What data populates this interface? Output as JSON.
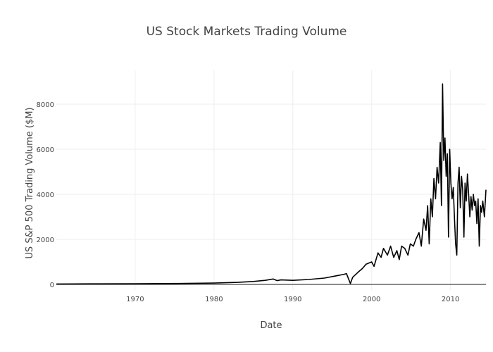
{
  "chart_data": {
    "type": "line",
    "title": "US Stock Markets Trading Volume",
    "xlabel": "Date",
    "ylabel": "US S&P 500 Trading Volume ($M)",
    "xlim": [
      1960.0,
      2014.5
    ],
    "ylim": [
      -250,
      9500
    ],
    "x_ticks": [
      1970,
      1980,
      1990,
      2000,
      2010
    ],
    "y_ticks": [
      0,
      2000,
      4000,
      6000,
      8000
    ],
    "grid": true,
    "legend": "none",
    "series": [
      {
        "name": "US S&P 500 Trading Volume ($M)",
        "color": "#000000",
        "x": [
          1960.0,
          1965.0,
          1970.0,
          1975.0,
          1980.0,
          1983.0,
          1985.0,
          1986.5,
          1987.5,
          1988.0,
          1988.5,
          1990.0,
          1992.0,
          1994.0,
          1995.5,
          1996.5,
          1996.8,
          1997.3,
          1997.6,
          1998.3,
          1998.8,
          1999.3,
          2000.0,
          2000.3,
          2000.8,
          2001.2,
          2001.5,
          2002.0,
          2002.4,
          2002.8,
          2003.2,
          2003.5,
          2003.8,
          2004.2,
          2004.6,
          2004.9,
          2005.3,
          2005.6,
          2006.0,
          2006.3,
          2006.6,
          2006.9,
          2007.1,
          2007.3,
          2007.5,
          2007.7,
          2007.9,
          2008.1,
          2008.3,
          2008.5,
          2008.7,
          2008.85,
          2009.0,
          2009.15,
          2009.3,
          2009.45,
          2009.6,
          2009.75,
          2009.9,
          2010.05,
          2010.2,
          2010.35,
          2010.5,
          2010.65,
          2010.8,
          2010.95,
          2011.1,
          2011.25,
          2011.4,
          2011.55,
          2011.7,
          2011.85,
          2012.0,
          2012.15,
          2012.3,
          2012.45,
          2012.6,
          2012.75,
          2012.9,
          2013.05,
          2013.2,
          2013.35,
          2013.5,
          2013.65,
          2013.8,
          2013.95,
          2014.1,
          2014.3,
          2014.5
        ],
        "values": [
          20,
          25,
          30,
          40,
          60,
          90,
          130,
          180,
          240,
          170,
          200,
          180,
          220,
          280,
          380,
          450,
          480,
          40,
          320,
          550,
          700,
          900,
          1000,
          800,
          1400,
          1200,
          1600,
          1300,
          1700,
          1200,
          1500,
          1100,
          1700,
          1600,
          1300,
          1800,
          1700,
          2000,
          2300,
          1700,
          2900,
          2400,
          3500,
          1800,
          3800,
          3000,
          4700,
          3800,
          5200,
          4500,
          6300,
          3500,
          8900,
          5500,
          6500,
          4800,
          5800,
          2100,
          6000,
          4500,
          3800,
          4300,
          3000,
          1800,
          1300,
          4500,
          5200,
          3400,
          4800,
          4200,
          2100,
          4500,
          3700,
          4900,
          4000,
          3000,
          3900,
          3300,
          4000,
          3500,
          3700,
          2700,
          3800,
          1700,
          3500,
          3200,
          3700,
          3000,
          4200
        ]
      }
    ]
  }
}
